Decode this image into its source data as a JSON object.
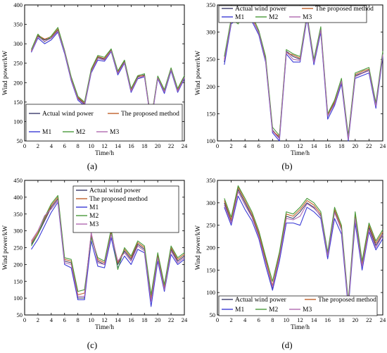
{
  "chart_data": [
    {
      "panel": "(a)",
      "type": "line",
      "xlabel": "Time/h",
      "ylabel": "Wind power/kW",
      "xlim": [
        0,
        24
      ],
      "ylim": [
        50,
        400
      ],
      "xticks": [
        0,
        2,
        4,
        6,
        8,
        10,
        12,
        14,
        16,
        18,
        20,
        22,
        24
      ],
      "yticks": [
        50,
        100,
        150,
        200,
        250,
        300,
        350,
        400
      ],
      "legend": {
        "placement": "bottom",
        "entries": [
          "Actual wind power",
          "The proposed method",
          "M1",
          "M2",
          "M3"
        ]
      },
      "x": [
        1,
        2,
        3,
        4,
        5,
        6,
        7,
        8,
        9,
        10,
        11,
        12,
        13,
        14,
        15,
        16,
        17,
        18,
        19,
        20,
        21,
        22,
        23,
        24
      ],
      "series": [
        {
          "name": "Actual wind power",
          "color": "#3a3a6a",
          "values": [
            280,
            320,
            310,
            315,
            335,
            280,
            210,
            160,
            145,
            230,
            265,
            260,
            285,
            225,
            255,
            180,
            215,
            220,
            100,
            215,
            180,
            235,
            180,
            215
          ]
        },
        {
          "name": "The proposed method",
          "color": "#c0602a",
          "values": [
            282,
            322,
            312,
            318,
            338,
            282,
            212,
            162,
            148,
            232,
            267,
            262,
            283,
            228,
            257,
            182,
            217,
            218,
            102,
            213,
            178,
            237,
            182,
            213
          ]
        },
        {
          "name": "M1",
          "color": "#3b3bd6",
          "values": [
            278,
            315,
            300,
            310,
            330,
            275,
            205,
            155,
            140,
            225,
            258,
            255,
            280,
            220,
            250,
            175,
            210,
            215,
            98,
            210,
            172,
            230,
            175,
            210
          ]
        },
        {
          "name": "M2",
          "color": "#4a9a3a",
          "values": [
            285,
            325,
            305,
            320,
            342,
            283,
            215,
            165,
            150,
            235,
            270,
            265,
            287,
            230,
            258,
            185,
            218,
            223,
            104,
            217,
            182,
            238,
            185,
            218
          ]
        },
        {
          "name": "M3",
          "color": "#b06ab0",
          "values": [
            280,
            318,
            306,
            314,
            333,
            279,
            208,
            158,
            143,
            228,
            262,
            258,
            282,
            224,
            252,
            178,
            212,
            217,
            100,
            212,
            176,
            233,
            178,
            213
          ]
        }
      ]
    },
    {
      "panel": "(b)",
      "type": "line",
      "xlabel": "Time/h",
      "ylabel": "Wind power/kW",
      "xlim": [
        0,
        24
      ],
      "ylim": [
        100,
        350
      ],
      "xticks": [
        0,
        2,
        4,
        6,
        8,
        10,
        12,
        14,
        16,
        18,
        20,
        22,
        24
      ],
      "yticks": [
        100,
        150,
        200,
        250,
        300,
        350
      ],
      "legend": {
        "placement": "top",
        "entries": [
          "Actual wind power",
          "The proposed method",
          "M1",
          "M2",
          "M3"
        ]
      },
      "x": [
        1,
        2,
        3,
        4,
        5,
        6,
        7,
        8,
        9,
        10,
        11,
        12,
        13,
        14,
        15,
        16,
        17,
        18,
        19,
        20,
        21,
        22,
        23,
        24
      ],
      "series": [
        {
          "name": "Actual wind power",
          "color": "#3a3a6a",
          "values": [
            245,
            320,
            320,
            335,
            325,
            300,
            250,
            120,
            105,
            265,
            255,
            250,
            330,
            245,
            305,
            145,
            170,
            210,
            105,
            220,
            225,
            230,
            165,
            260
          ]
        },
        {
          "name": "The proposed method",
          "color": "#c0602a",
          "values": [
            250,
            322,
            318,
            332,
            328,
            298,
            252,
            118,
            108,
            262,
            258,
            252,
            328,
            248,
            302,
            148,
            172,
            208,
            108,
            222,
            228,
            232,
            168,
            258
          ]
        },
        {
          "name": "M1",
          "color": "#3b3bd6",
          "values": [
            240,
            315,
            325,
            330,
            320,
            295,
            245,
            115,
            100,
            260,
            245,
            245,
            325,
            240,
            300,
            140,
            165,
            205,
            100,
            215,
            220,
            225,
            160,
            255
          ]
        },
        {
          "name": "M2",
          "color": "#4a9a3a",
          "values": [
            255,
            325,
            315,
            338,
            332,
            303,
            255,
            125,
            110,
            268,
            260,
            255,
            333,
            250,
            310,
            150,
            175,
            215,
            110,
            225,
            230,
            235,
            170,
            265
          ]
        },
        {
          "name": "M3",
          "color": "#b06ab0",
          "values": [
            248,
            318,
            322,
            333,
            324,
            299,
            248,
            118,
            104,
            264,
            250,
            248,
            329,
            244,
            304,
            146,
            168,
            210,
            103,
            218,
            224,
            229,
            164,
            259
          ]
        }
      ]
    },
    {
      "panel": "(c)",
      "type": "line",
      "xlabel": "Time/h",
      "ylabel": "Wind power/kW",
      "xlim": [
        0,
        24
      ],
      "ylim": [
        50,
        450
      ],
      "xticks": [
        0,
        2,
        4,
        6,
        8,
        10,
        12,
        14,
        16,
        18,
        20,
        22,
        24
      ],
      "yticks": [
        50,
        100,
        150,
        200,
        250,
        300,
        350,
        400,
        450
      ],
      "legend": {
        "placement": "top",
        "entries": [
          "Actual wind power",
          "The proposed method",
          "M1",
          "M2",
          "M3"
        ]
      },
      "x": [
        1,
        2,
        3,
        4,
        5,
        6,
        7,
        8,
        9,
        10,
        11,
        12,
        13,
        14,
        15,
        16,
        17,
        18,
        19,
        20,
        21,
        22,
        23,
        24
      ],
      "series": [
        {
          "name": "Actual wind power",
          "color": "#3a3a6a",
          "values": [
            260,
            290,
            330,
            370,
            395,
            210,
            205,
            100,
            100,
            285,
            210,
            200,
            300,
            200,
            240,
            215,
            260,
            245,
            95,
            225,
            130,
            245,
            210,
            225
          ]
        },
        {
          "name": "The proposed method",
          "color": "#c0602a",
          "values": [
            265,
            295,
            335,
            375,
            400,
            215,
            210,
            110,
            115,
            290,
            215,
            205,
            295,
            205,
            245,
            220,
            265,
            250,
            100,
            230,
            135,
            250,
            215,
            230
          ]
        },
        {
          "name": "M1",
          "color": "#3b3bd6",
          "values": [
            245,
            275,
            315,
            355,
            385,
            200,
            190,
            95,
            95,
            270,
            195,
            190,
            280,
            190,
            225,
            200,
            245,
            235,
            75,
            210,
            120,
            230,
            200,
            215
          ]
        },
        {
          "name": "M2",
          "color": "#4a9a3a",
          "values": [
            255,
            290,
            340,
            380,
            405,
            220,
            215,
            120,
            125,
            280,
            220,
            210,
            305,
            185,
            250,
            225,
            270,
            255,
            110,
            235,
            140,
            255,
            220,
            235
          ]
        },
        {
          "name": "M3",
          "color": "#b06ab0",
          "values": [
            270,
            300,
            345,
            365,
            390,
            205,
            200,
            105,
            105,
            295,
            205,
            200,
            290,
            210,
            235,
            210,
            255,
            240,
            90,
            220,
            125,
            240,
            205,
            220
          ]
        }
      ]
    },
    {
      "panel": "(d)",
      "type": "line",
      "xlabel": "Time/h",
      "ylabel": "Wind power/kW",
      "xlim": [
        0,
        24
      ],
      "ylim": [
        50,
        350
      ],
      "xticks": [
        0,
        2,
        4,
        6,
        8,
        10,
        12,
        14,
        16,
        18,
        20,
        22,
        24
      ],
      "yticks": [
        50,
        100,
        150,
        200,
        250,
        300,
        350
      ],
      "legend": {
        "placement": "bottom",
        "entries": [
          "Actual wind power",
          "The proposed method",
          "M1",
          "M2",
          "M3"
        ]
      },
      "x": [
        1,
        2,
        3,
        4,
        5,
        6,
        7,
        8,
        9,
        10,
        11,
        12,
        13,
        14,
        15,
        16,
        17,
        18,
        19,
        20,
        21,
        22,
        23,
        24
      ],
      "series": [
        {
          "name": "Actual wind power",
          "color": "#3a3a6a",
          "values": [
            300,
            260,
            330,
            300,
            270,
            230,
            170,
            110,
            180,
            270,
            265,
            280,
            300,
            290,
            270,
            180,
            280,
            240,
            70,
            270,
            160,
            245,
            205,
            230
          ]
        },
        {
          "name": "The proposed method",
          "color": "#c0602a",
          "values": [
            305,
            262,
            335,
            305,
            275,
            232,
            175,
            115,
            185,
            275,
            270,
            285,
            305,
            295,
            275,
            185,
            285,
            245,
            75,
            275,
            165,
            250,
            210,
            235
          ]
        },
        {
          "name": "M1",
          "color": "#3b3bd6",
          "values": [
            290,
            250,
            315,
            285,
            260,
            220,
            160,
            105,
            170,
            255,
            255,
            250,
            290,
            280,
            265,
            175,
            265,
            230,
            65,
            255,
            150,
            235,
            195,
            220
          ]
        },
        {
          "name": "M2",
          "color": "#4a9a3a",
          "values": [
            310,
            268,
            338,
            310,
            280,
            238,
            180,
            125,
            190,
            280,
            275,
            290,
            310,
            300,
            280,
            190,
            290,
            250,
            80,
            280,
            170,
            255,
            215,
            240
          ]
        },
        {
          "name": "M3",
          "color": "#b06ab0",
          "values": [
            295,
            255,
            325,
            295,
            268,
            225,
            168,
            112,
            178,
            265,
            262,
            270,
            298,
            288,
            272,
            182,
            278,
            240,
            72,
            265,
            158,
            240,
            200,
            228
          ]
        }
      ]
    }
  ]
}
